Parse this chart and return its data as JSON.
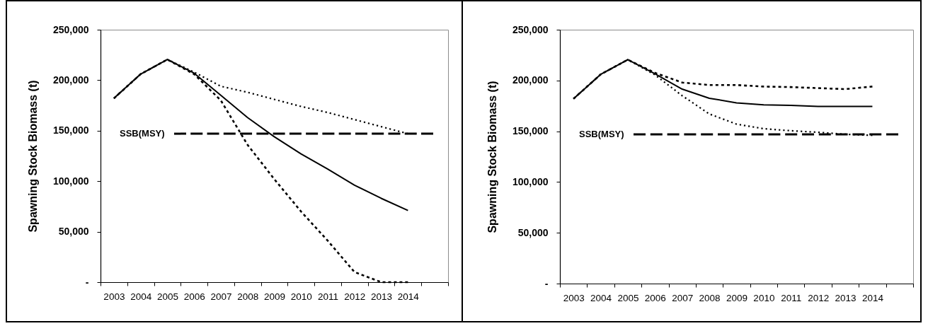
{
  "chart_data": [
    {
      "type": "line",
      "categories": [
        "2003",
        "2004",
        "2005",
        "2006",
        "2007",
        "2008",
        "2009",
        "2010",
        "2011",
        "2012",
        "2013",
        "2014",
        null
      ],
      "ylabel": "Spawning Stock Biomass (t)",
      "ylim": [
        0,
        250000
      ],
      "yticks": [
        {
          "value": 0,
          "label": "-"
        },
        {
          "value": 50000,
          "label": "50,000"
        },
        {
          "value": 100000,
          "label": "100,000"
        },
        {
          "value": 150000,
          "label": "150,000"
        },
        {
          "value": 200000,
          "label": "200,000"
        },
        {
          "value": 250000,
          "label": "250,000"
        }
      ],
      "grid": false,
      "series": [
        {
          "color": "#000000",
          "line_style": "solid",
          "values": [
            182000,
            206000,
            220500,
            207000,
            185000,
            163000,
            144000,
            127000,
            112000,
            96000,
            83000,
            71000,
            null
          ]
        },
        {
          "color": "#000000",
          "line_style": "dotted",
          "values": [
            182000,
            206000,
            220500,
            208000,
            194000,
            188000,
            181000,
            174000,
            168000,
            161000,
            154000,
            147000,
            null
          ]
        },
        {
          "color": "#000000",
          "line_style": "dashed",
          "values": [
            182000,
            206000,
            220500,
            206000,
            180000,
            136000,
            102000,
            70000,
            41000,
            10000,
            0,
            0,
            null
          ]
        }
      ],
      "ref_lines": [
        {
          "axis": "y",
          "value": 147000,
          "label": "SSB(MSY)",
          "color": "#000000",
          "line_style": "dashed"
        }
      ]
    },
    {
      "type": "line",
      "categories": [
        "2003",
        "2004",
        "2005",
        "2006",
        "2007",
        "2008",
        "2009",
        "2010",
        "2011",
        "2012",
        "2013",
        "2014",
        null
      ],
      "ylabel": "Spawning Stock Biomass (t)",
      "ylim": [
        0,
        250000
      ],
      "yticks": [
        {
          "value": 0,
          "label": "-"
        },
        {
          "value": 50000,
          "label": "50,000"
        },
        {
          "value": 100000,
          "label": "100,000"
        },
        {
          "value": 150000,
          "label": "150,000"
        },
        {
          "value": 200000,
          "label": "200,000"
        },
        {
          "value": 250000,
          "label": "250,000"
        }
      ],
      "grid": false,
      "series": [
        {
          "color": "#000000",
          "line_style": "solid",
          "values": [
            182000,
            206000,
            220500,
            206500,
            191500,
            182500,
            178000,
            176000,
            175500,
            174500,
            174500,
            174500,
            null
          ]
        },
        {
          "color": "#000000",
          "line_style": "dashed",
          "values": [
            182000,
            206000,
            220500,
            207500,
            198000,
            195500,
            195500,
            194000,
            193500,
            192500,
            191500,
            194000,
            null
          ]
        },
        {
          "color": "#000000",
          "line_style": "dotted",
          "values": [
            182000,
            206000,
            220500,
            205500,
            185000,
            167000,
            157000,
            152500,
            150500,
            149000,
            147000,
            146000,
            null
          ]
        }
      ],
      "ref_lines": [
        {
          "axis": "y",
          "value": 147000,
          "label": "SSB(MSY)",
          "color": "#000000",
          "line_style": "dashed"
        }
      ]
    }
  ]
}
